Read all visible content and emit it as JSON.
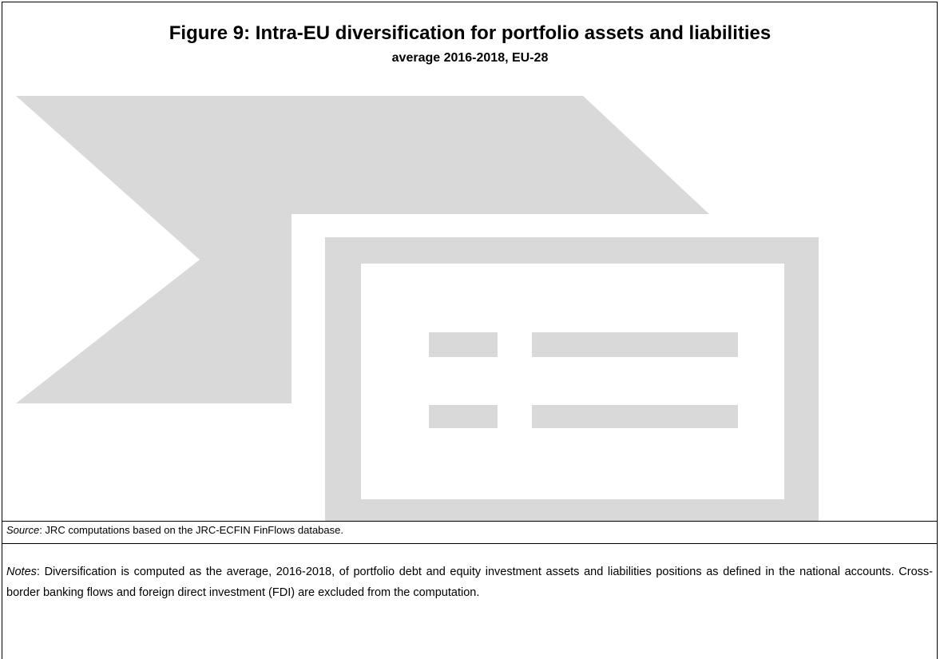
{
  "header": {
    "title": "Figure 9: Intra-EU diversification for portfolio assets and liabilities",
    "subtitle": "average 2016-2018, EU-28"
  },
  "source": {
    "label": "Source",
    "text": ": JRC computations based on the JRC-ECFIN FinFlows database."
  },
  "notes": {
    "label": "Notes",
    "text": ": Diversification is computed as the average, 2016-2018, of portfolio debt and equity investment assets and liabilities positions as defined in the national accounts. Cross-border banking flows and foreign direct investment (FDI) are excluded from the computation."
  }
}
